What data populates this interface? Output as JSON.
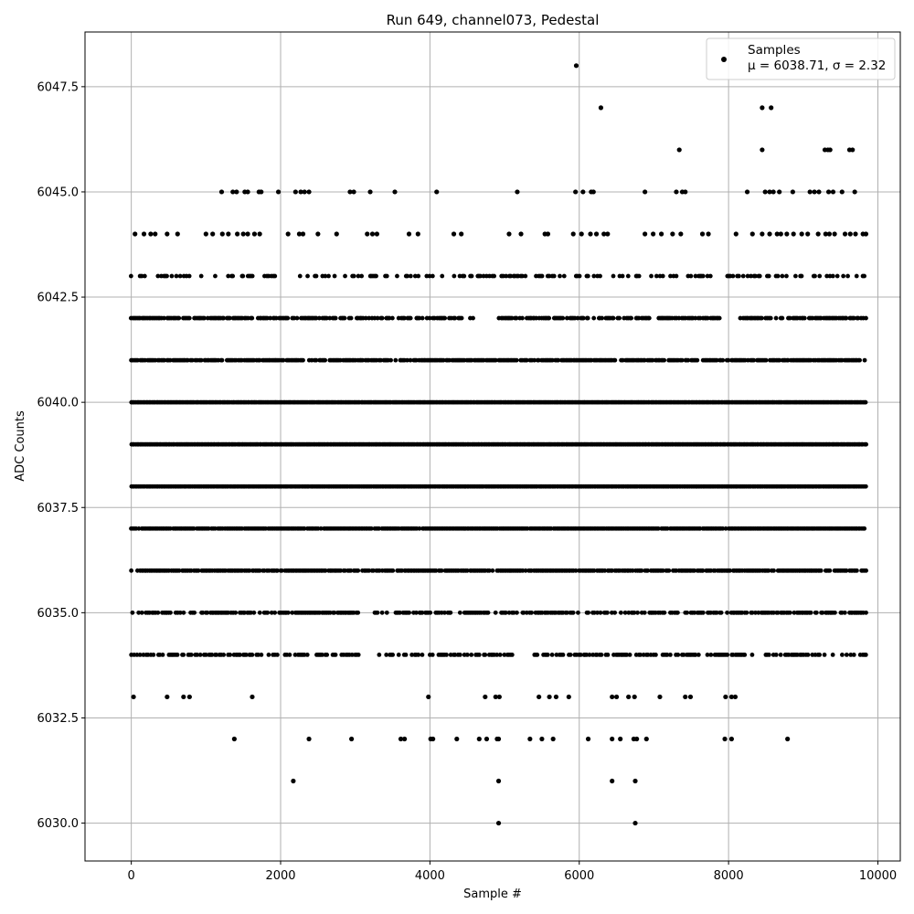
{
  "chart_data": {
    "type": "scatter",
    "title": "Run 649, channel073, Pedestal",
    "xlabel": "Sample #",
    "ylabel": "ADC Counts",
    "xlim": [
      -620,
      10300
    ],
    "ylim": [
      6029.1,
      6048.8
    ],
    "xticks": [
      0,
      2000,
      4000,
      6000,
      8000,
      10000
    ],
    "yticks": [
      6030.0,
      6032.5,
      6035.0,
      6037.5,
      6040.0,
      6042.5,
      6045.0,
      6047.5
    ],
    "grid": true,
    "legend": {
      "placement": "top-right",
      "entries": [
        "Samples",
        "μ = 6038.71, σ = 2.32"
      ]
    },
    "series": [
      {
        "name": "Samples",
        "color": "#000000",
        "dense_bands": [
          {
            "y": 6034,
            "x_start": 0,
            "x_end": 9840,
            "density": 0.55,
            "gaps": [
              [
                3050,
                3300
              ],
              [
                5150,
                5300
              ]
            ]
          },
          {
            "y": 6035,
            "x_start": 0,
            "x_end": 9840,
            "density": 0.6,
            "gaps": [
              [
                3050,
                3250
              ]
            ]
          },
          {
            "y": 6036,
            "x_start": 0,
            "x_end": 9840,
            "density": 0.85,
            "gaps": []
          },
          {
            "y": 6037,
            "x_start": 0,
            "x_end": 9840,
            "density": 0.95,
            "gaps": []
          },
          {
            "y": 6038,
            "x_start": 0,
            "x_end": 9840,
            "density": 1.0,
            "gaps": []
          },
          {
            "y": 6039,
            "x_start": 0,
            "x_end": 9840,
            "density": 1.0,
            "gaps": []
          },
          {
            "y": 6040,
            "x_start": 0,
            "x_end": 9840,
            "density": 1.0,
            "gaps": []
          },
          {
            "y": 6041,
            "x_start": 0,
            "x_end": 9840,
            "density": 0.85,
            "gaps": []
          },
          {
            "y": 6042,
            "x_start": 0,
            "x_end": 9840,
            "density": 0.7,
            "gaps": [
              [
                4600,
                4900
              ],
              [
                7900,
                8100
              ]
            ]
          },
          {
            "y": 6043,
            "x_start": 0,
            "x_end": 9840,
            "density": 0.3,
            "gaps": []
          }
        ],
        "points": [
          [
            30,
            6033
          ],
          [
            480,
            6033
          ],
          [
            700,
            6033
          ],
          [
            780,
            6033
          ],
          [
            1620,
            6033
          ],
          [
            3980,
            6033
          ],
          [
            4740,
            6033
          ],
          [
            4880,
            6033
          ],
          [
            4930,
            6033
          ],
          [
            5460,
            6033
          ],
          [
            5600,
            6033
          ],
          [
            5690,
            6033
          ],
          [
            5860,
            6033
          ],
          [
            6440,
            6033
          ],
          [
            6500,
            6033
          ],
          [
            6660,
            6033
          ],
          [
            6740,
            6033
          ],
          [
            7080,
            6033
          ],
          [
            7420,
            6033
          ],
          [
            7490,
            6033
          ],
          [
            7960,
            6033
          ],
          [
            8040,
            6033
          ],
          [
            8090,
            6033
          ],
          [
            1380,
            6032
          ],
          [
            2380,
            6032
          ],
          [
            2950,
            6032
          ],
          [
            3610,
            6032
          ],
          [
            3660,
            6032
          ],
          [
            4010,
            6032
          ],
          [
            4040,
            6032
          ],
          [
            4360,
            6032
          ],
          [
            4660,
            6032
          ],
          [
            4760,
            6032
          ],
          [
            4900,
            6032
          ],
          [
            4920,
            6032
          ],
          [
            5340,
            6032
          ],
          [
            5500,
            6032
          ],
          [
            5650,
            6032
          ],
          [
            6120,
            6032
          ],
          [
            6440,
            6032
          ],
          [
            6550,
            6032
          ],
          [
            6730,
            6032
          ],
          [
            6770,
            6032
          ],
          [
            6900,
            6032
          ],
          [
            7950,
            6032
          ],
          [
            8040,
            6032
          ],
          [
            8790,
            6032
          ],
          [
            2170,
            6031
          ],
          [
            4920,
            6031
          ],
          [
            6440,
            6031
          ],
          [
            6750,
            6031
          ],
          [
            4920,
            6030
          ],
          [
            6750,
            6030
          ],
          [
            50,
            6044
          ],
          [
            170,
            6044
          ],
          [
            260,
            6044
          ],
          [
            320,
            6044
          ],
          [
            480,
            6044
          ],
          [
            620,
            6044
          ],
          [
            1000,
            6044
          ],
          [
            1090,
            6044
          ],
          [
            1220,
            6044
          ],
          [
            1300,
            6044
          ],
          [
            1420,
            6044
          ],
          [
            1500,
            6044
          ],
          [
            1560,
            6044
          ],
          [
            1650,
            6044
          ],
          [
            1720,
            6044
          ],
          [
            2100,
            6044
          ],
          [
            2250,
            6044
          ],
          [
            2300,
            6044
          ],
          [
            2500,
            6044
          ],
          [
            2750,
            6044
          ],
          [
            3160,
            6044
          ],
          [
            3230,
            6044
          ],
          [
            3290,
            6044
          ],
          [
            3720,
            6044
          ],
          [
            3840,
            6044
          ],
          [
            4320,
            6044
          ],
          [
            4420,
            6044
          ],
          [
            5060,
            6044
          ],
          [
            5220,
            6044
          ],
          [
            5540,
            6044
          ],
          [
            5580,
            6044
          ],
          [
            5920,
            6044
          ],
          [
            6030,
            6044
          ],
          [
            6150,
            6044
          ],
          [
            6230,
            6044
          ],
          [
            6330,
            6044
          ],
          [
            6380,
            6044
          ],
          [
            6880,
            6044
          ],
          [
            6990,
            6044
          ],
          [
            7100,
            6044
          ],
          [
            7250,
            6044
          ],
          [
            7360,
            6044
          ],
          [
            7650,
            6044
          ],
          [
            7730,
            6044
          ],
          [
            8100,
            6044
          ],
          [
            8320,
            6044
          ],
          [
            8450,
            6044
          ],
          [
            8550,
            6044
          ],
          [
            8650,
            6044
          ],
          [
            8700,
            6044
          ],
          [
            8780,
            6044
          ],
          [
            8870,
            6044
          ],
          [
            8980,
            6044
          ],
          [
            9060,
            6044
          ],
          [
            9200,
            6044
          ],
          [
            9300,
            6044
          ],
          [
            9350,
            6044
          ],
          [
            9420,
            6044
          ],
          [
            9560,
            6044
          ],
          [
            9630,
            6044
          ],
          [
            9700,
            6044
          ],
          [
            9800,
            6044
          ],
          [
            9840,
            6044
          ],
          [
            1210,
            6045
          ],
          [
            1360,
            6045
          ],
          [
            1410,
            6045
          ],
          [
            1520,
            6045
          ],
          [
            1560,
            6045
          ],
          [
            1710,
            6045
          ],
          [
            1740,
            6045
          ],
          [
            1970,
            6045
          ],
          [
            2200,
            6045
          ],
          [
            2270,
            6045
          ],
          [
            2320,
            6045
          ],
          [
            2380,
            6045
          ],
          [
            2930,
            6045
          ],
          [
            2980,
            6045
          ],
          [
            3200,
            6045
          ],
          [
            3530,
            6045
          ],
          [
            4090,
            6045
          ],
          [
            5170,
            6045
          ],
          [
            5950,
            6045
          ],
          [
            6050,
            6045
          ],
          [
            6160,
            6045
          ],
          [
            6190,
            6045
          ],
          [
            6880,
            6045
          ],
          [
            7300,
            6045
          ],
          [
            7380,
            6045
          ],
          [
            7420,
            6045
          ],
          [
            8250,
            6045
          ],
          [
            8490,
            6045
          ],
          [
            8550,
            6045
          ],
          [
            8600,
            6045
          ],
          [
            8680,
            6045
          ],
          [
            8860,
            6045
          ],
          [
            9090,
            6045
          ],
          [
            9150,
            6045
          ],
          [
            9210,
            6045
          ],
          [
            9340,
            6045
          ],
          [
            9400,
            6045
          ],
          [
            9520,
            6045
          ],
          [
            9690,
            6045
          ],
          [
            7340,
            6046
          ],
          [
            8450,
            6046
          ],
          [
            9290,
            6046
          ],
          [
            9330,
            6046
          ],
          [
            9360,
            6046
          ],
          [
            9620,
            6046
          ],
          [
            9660,
            6046
          ],
          [
            6290,
            6047
          ],
          [
            8450,
            6047
          ],
          [
            8570,
            6047
          ],
          [
            5960,
            6048
          ]
        ]
      }
    ]
  }
}
